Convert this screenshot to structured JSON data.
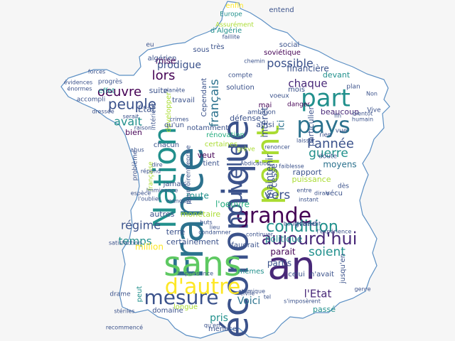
{
  "colors": {
    "background": "#f6f6f6",
    "map_fill": "#ffffff",
    "map_outline": "#5b8fc4",
    "palette": [
      "#440154",
      "#3b528b",
      "#21908c",
      "#5ec962",
      "#fde725",
      "#482878",
      "#2c728e",
      "#27ad81",
      "#aadc32"
    ]
  },
  "words": [
    {
      "text": "an",
      "c": "#482878"
    },
    {
      "text": "France",
      "c": "#2c728e"
    },
    {
      "text": "économique",
      "c": "#3b528b"
    },
    {
      "text": "Nation",
      "c": "#21908c"
    },
    {
      "text": "sans",
      "c": "#5ec962"
    },
    {
      "text": "point",
      "c": "#aadc32"
    },
    {
      "text": "pays",
      "c": "#2c728e"
    },
    {
      "text": "part",
      "c": "#21908c"
    },
    {
      "text": "grande",
      "c": "#440154"
    },
    {
      "text": "mesure",
      "c": "#3b528b"
    },
    {
      "text": "d'autre",
      "c": "#fde725"
    },
    {
      "text": "nouvelle",
      "c": "#3b528b"
    },
    {
      "text": "aujourd'hui",
      "c": "#482878"
    },
    {
      "text": "condition",
      "c": "#21908c"
    },
    {
      "text": "peuple",
      "c": "#3b528b"
    },
    {
      "text": "oeuvre",
      "c": "#440154"
    },
    {
      "text": "lors",
      "c": "#440154"
    },
    {
      "text": "l'année",
      "c": "#3b528b"
    },
    {
      "text": "guerre",
      "c": "#21908c"
    },
    {
      "text": "soient",
      "c": "#21908c"
    },
    {
      "text": "vers",
      "c": "#3b528b"
    },
    {
      "text": "possible",
      "c": "#3b528b"
    },
    {
      "text": "chaque",
      "c": "#482878"
    },
    {
      "text": "français",
      "c": "#2c728e"
    },
    {
      "text": "avait",
      "c": "#21908c"
    },
    {
      "text": "régime",
      "c": "#3b528b"
    },
    {
      "text": "temps",
      "c": "#21908c"
    },
    {
      "text": "l'Etat",
      "c": "#482878"
    },
    {
      "text": "pris",
      "c": "#21908c"
    },
    {
      "text": "Voici",
      "c": "#2c728e"
    },
    {
      "text": "intérêt",
      "c": "#3b528b"
    },
    {
      "text": "ici",
      "c": "#2c728e"
    },
    {
      "text": "maintenir",
      "c": "#3b528b"
    },
    {
      "text": "route",
      "c": "#21908c"
    },
    {
      "text": "l'oeuvre",
      "c": "#27ad81"
    },
    {
      "text": "grand",
      "c": "#3b528b"
    },
    {
      "text": "parait",
      "c": "#440154"
    },
    {
      "text": "partis",
      "c": "#3b528b"
    },
    {
      "text": "politique",
      "c": "#21908c"
    },
    {
      "text": "cessé",
      "c": "#3b528b"
    },
    {
      "text": "moyens",
      "c": "#2c728e"
    },
    {
      "text": "rapport",
      "c": "#3b528b"
    },
    {
      "text": "puissance",
      "c": "#aadc32"
    },
    {
      "text": "prodigue",
      "c": "#3b528b"
    },
    {
      "text": "mise",
      "c": "#440154"
    },
    {
      "text": "suite",
      "c": "#3b528b"
    },
    {
      "text": "effet",
      "c": "#21908c"
    },
    {
      "text": "million",
      "c": "#fde725"
    },
    {
      "text": "État",
      "c": "#3b528b"
    },
    {
      "text": "entend",
      "c": "#3b528b"
    },
    {
      "text": "d'Algérie",
      "c": "#21908c"
    },
    {
      "text": "social",
      "c": "#3b528b"
    },
    {
      "text": "soviétique",
      "c": "#440154"
    },
    {
      "text": "financière",
      "c": "#3b528b"
    },
    {
      "text": "devant",
      "c": "#21908c"
    },
    {
      "text": "particulier",
      "c": "#3b528b"
    },
    {
      "text": "beaucoup",
      "c": "#482878"
    },
    {
      "text": "sous",
      "c": "#3b528b"
    },
    {
      "text": "très",
      "c": "#3b528b"
    },
    {
      "text": "algérien",
      "c": "#3b528b"
    },
    {
      "text": "bien",
      "c": "#440154"
    },
    {
      "text": "défense",
      "c": "#3b528b"
    },
    {
      "text": "ainsi",
      "c": "#3b528b"
    },
    {
      "text": "chacun",
      "c": "#3b528b"
    },
    {
      "text": "notamment",
      "c": "#3b528b"
    },
    {
      "text": "rénovation",
      "c": "#27ad81"
    },
    {
      "text": "certaines",
      "c": "#aadc32"
    },
    {
      "text": "veut",
      "c": "#440154"
    },
    {
      "text": "tient",
      "c": "#3b528b"
    },
    {
      "text": "jamais",
      "c": "#3b528b"
    },
    {
      "text": "autres",
      "c": "#3b528b"
    },
    {
      "text": "monétaire",
      "c": "#aadc32"
    },
    {
      "text": "terre",
      "c": "#3b528b"
    },
    {
      "text": "certainement",
      "c": "#3b528b"
    },
    {
      "text": "celui",
      "c": "#3b528b"
    },
    {
      "text": "n'avait",
      "c": "#3b528b"
    },
    {
      "text": "mêmes",
      "c": "#21908c"
    },
    {
      "text": "domaine",
      "c": "#3b528b"
    },
    {
      "text": "longue",
      "c": "#aadc32"
    },
    {
      "text": "peut",
      "c": "#21908c"
    },
    {
      "text": "passé",
      "c": "#21908c"
    },
    {
      "text": "menace",
      "c": "#3b528b"
    },
    {
      "text": "vécu",
      "c": "#3b528b"
    },
    {
      "text": "mai",
      "c": "#440154"
    },
    {
      "text": "mois",
      "c": "#3b528b"
    },
    {
      "text": "Cependant",
      "c": "#3b528b"
    },
    {
      "text": "travail",
      "c": "#3b528b"
    },
    {
      "text": "développer",
      "c": "#aadc32"
    },
    {
      "text": "qu'un",
      "c": "#3b528b"
    },
    {
      "text": "intérieur",
      "c": "#3b528b"
    },
    {
      "text": "problème",
      "c": "#3b528b"
    },
    {
      "text": "française",
      "c": "#aadc32"
    },
    {
      "text": "pourvoirentreprise",
      "c": "#3b528b"
    },
    {
      "text": "solution",
      "c": "#3b528b"
    },
    {
      "text": "compte",
      "c": "#3b528b"
    },
    {
      "text": "enfin",
      "c": "#fde725"
    },
    {
      "text": "Europe",
      "c": "#21908c"
    },
    {
      "text": "Assurément",
      "c": "#aadc32"
    },
    {
      "text": "eu",
      "c": "#3b528b"
    },
    {
      "text": "progrès",
      "c": "#3b528b"
    },
    {
      "text": "accompli",
      "c": "#3b528b"
    },
    {
      "text": "rien",
      "c": "#3b528b"
    },
    {
      "text": "vue",
      "c": "#3b528b"
    },
    {
      "text": "doute",
      "c": "#3b528b"
    },
    {
      "text": "dès",
      "c": "#3b528b"
    },
    {
      "text": "grève",
      "c": "#aadc32"
    },
    {
      "text": "buts",
      "c": "#3b528b"
    },
    {
      "text": "plan",
      "c": "#3b528b"
    },
    {
      "text": "Vive",
      "c": "#3b528b"
    },
    {
      "text": "drame",
      "c": "#3b528b"
    },
    {
      "text": "faudrait",
      "c": "#3b528b"
    },
    {
      "text": "jusqu'en",
      "c": "#3b528b"
    },
    {
      "text": "voeux",
      "c": "#3b528b"
    },
    {
      "text": "ambition",
      "c": "#3b528b"
    },
    {
      "text": "danger",
      "c": "#440154"
    },
    {
      "text": "entre",
      "c": "#3b528b"
    },
    {
      "text": "Impuissance",
      "c": "#3b528b"
    },
    {
      "text": "satisfaction",
      "c": "#3b528b"
    },
    {
      "text": "continuer",
      "c": "#3b528b"
    },
    {
      "text": "Imminence",
      "c": "#3b528b"
    },
    {
      "text": "espèce",
      "c": "#3b528b"
    },
    {
      "text": "l'oublier",
      "c": "#3b528b"
    },
    {
      "text": "forces",
      "c": "#3b528b"
    },
    {
      "text": "évidences",
      "c": "#3b528b"
    },
    {
      "text": "énormes",
      "c": "#3b528b"
    },
    {
      "text": "dressée",
      "c": "#3b528b"
    },
    {
      "text": "serait",
      "c": "#3b528b"
    },
    {
      "text": "raison",
      "c": "#3b528b"
    },
    {
      "text": "abus",
      "c": "#3b528b"
    },
    {
      "text": "dire",
      "c": "#3b528b"
    },
    {
      "text": "répond",
      "c": "#3b528b"
    },
    {
      "text": "crimes",
      "c": "#3b528b"
    },
    {
      "text": "faiblesse",
      "c": "#3b528b"
    },
    {
      "text": "Abdication",
      "c": "#3b528b"
    },
    {
      "text": "atomique",
      "c": "#3b528b"
    },
    {
      "text": "civile",
      "c": "#3b528b"
    },
    {
      "text": "tel",
      "c": "#3b528b"
    },
    {
      "text": "s'imposèrent",
      "c": "#3b528b"
    },
    {
      "text": "stériles",
      "c": "#3b528b"
    },
    {
      "text": "recommencé",
      "c": "#3b528b"
    },
    {
      "text": "qu'en",
      "c": "#3b528b"
    },
    {
      "text": "l'expérience",
      "c": "#3b528b"
    },
    {
      "text": "bouleversent",
      "c": "#3b528b"
    },
    {
      "text": "faillite",
      "c": "#3b528b"
    },
    {
      "text": "chemin",
      "c": "#3b528b"
    },
    {
      "text": "planète",
      "c": "#3b528b"
    },
    {
      "text": "bientôt",
      "c": "#3b528b"
    },
    {
      "text": "Non",
      "c": "#3b528b"
    },
    {
      "text": "genre",
      "c": "#3b528b"
    },
    {
      "text": "humain",
      "c": "#3b528b"
    },
    {
      "text": "fin",
      "c": "#3b528b"
    },
    {
      "text": "lieu",
      "c": "#3b528b"
    },
    {
      "text": "condamner",
      "c": "#3b528b"
    },
    {
      "text": "renoncer",
      "c": "#3b528b"
    },
    {
      "text": "laisser",
      "c": "#3b528b"
    },
    {
      "text": "instant",
      "c": "#3b528b"
    },
    {
      "text": "dirais",
      "c": "#3b528b"
    },
    {
      "text": "manquer",
      "c": "#3b528b"
    }
  ]
}
